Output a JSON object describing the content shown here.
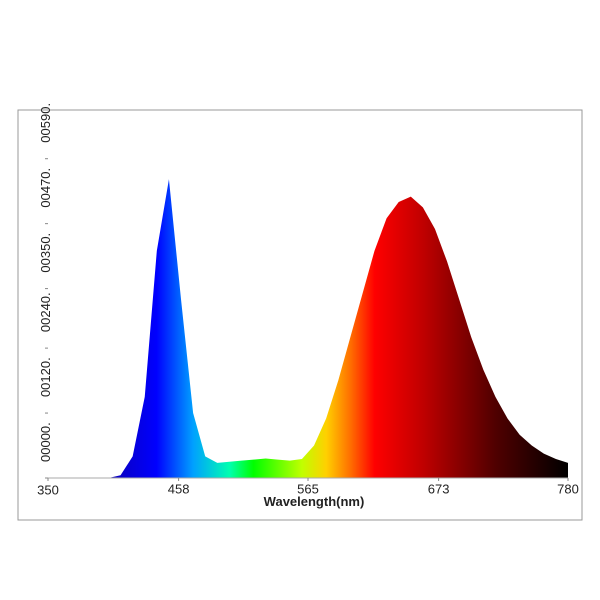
{
  "chart_data": {
    "type": "area",
    "xlabel": "Wavelength(nm)",
    "x": [
      400,
      410,
      420,
      430,
      440,
      450,
      460,
      470,
      480,
      490,
      500,
      510,
      520,
      530,
      540,
      550,
      560,
      570,
      580,
      590,
      600,
      610,
      620,
      630,
      640,
      650,
      660,
      670,
      680,
      690,
      700,
      710,
      720,
      730,
      740,
      750,
      760,
      770,
      780
    ],
    "values": [
      0,
      5,
      40,
      150,
      420,
      552,
      330,
      120,
      40,
      28,
      30,
      32,
      34,
      36,
      34,
      32,
      35,
      60,
      110,
      180,
      260,
      340,
      420,
      480,
      510,
      520,
      500,
      460,
      400,
      330,
      260,
      200,
      150,
      110,
      80,
      60,
      45,
      35,
      28
    ],
    "xlim": [
      350,
      780
    ],
    "xticks": [
      350,
      458,
      565,
      673,
      780
    ],
    "ylim": [
      0,
      680
    ],
    "yticks": [
      {
        "value": 0,
        "label": "00000."
      },
      {
        "value": 120,
        "label": "00120."
      },
      {
        "value": 240,
        "label": "00240."
      },
      {
        "value": 350,
        "label": "00350."
      },
      {
        "value": 470,
        "label": "00470."
      },
      {
        "value": 590,
        "label": "00590."
      }
    ],
    "fill": "spectrum"
  }
}
